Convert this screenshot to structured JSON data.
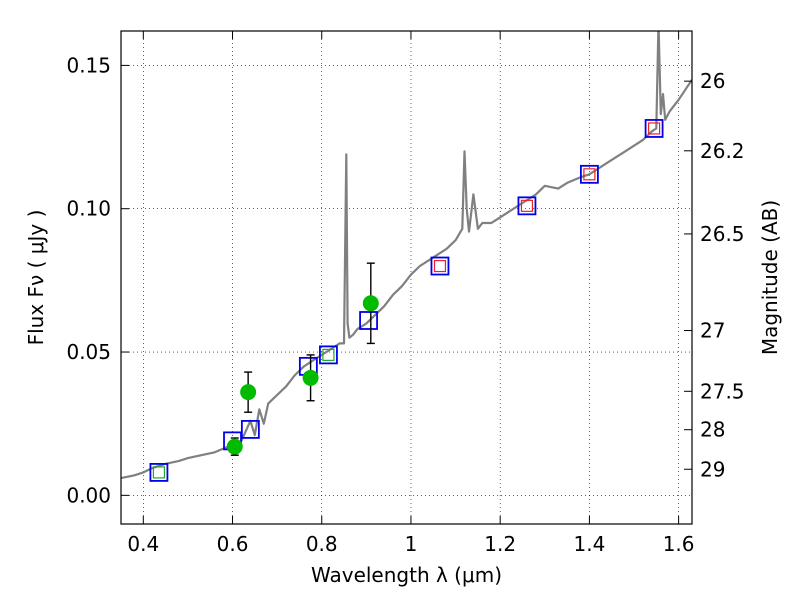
{
  "chart_data": {
    "type": "scatter",
    "xlabel": "Wavelength  λ (μm)",
    "ylabel": "Flux  Fν  ( μJy )",
    "y2label": "Magnitude (AB)",
    "xlim": [
      0.35,
      1.63
    ],
    "ylim": [
      -0.01,
      0.162
    ],
    "grid": true,
    "x_ticks": [
      {
        "value": 0.4,
        "label": "0.4"
      },
      {
        "value": 0.6,
        "label": "0.6"
      },
      {
        "value": 0.8,
        "label": "0.8"
      },
      {
        "value": 1.0,
        "label": "1"
      },
      {
        "value": 1.2,
        "label": "1.2"
      },
      {
        "value": 1.4,
        "label": "1.4"
      },
      {
        "value": 1.6,
        "label": "1.6"
      }
    ],
    "y_ticks": [
      {
        "value": 0.0,
        "label": "0.00"
      },
      {
        "value": 0.05,
        "label": "0.05"
      },
      {
        "value": 0.1,
        "label": "0.10"
      },
      {
        "value": 0.15,
        "label": "0.15"
      }
    ],
    "y2_ticks": [
      {
        "flux": 0.1445,
        "label": "26"
      },
      {
        "flux": 0.1202,
        "label": "26.2"
      },
      {
        "flux": 0.0912,
        "label": "26.5"
      },
      {
        "flux": 0.0575,
        "label": "27"
      },
      {
        "flux": 0.0363,
        "label": "27.5"
      },
      {
        "flux": 0.0229,
        "label": "28"
      },
      {
        "flux": 0.0091,
        "label": "29"
      }
    ],
    "series": [
      {
        "name": "model-spectrum",
        "kind": "line",
        "color": "#808080",
        "x": [
          0.35,
          0.38,
          0.4,
          0.42,
          0.45,
          0.48,
          0.5,
          0.53,
          0.56,
          0.59,
          0.6,
          0.62,
          0.64,
          0.65,
          0.66,
          0.67,
          0.68,
          0.7,
          0.72,
          0.74,
          0.76,
          0.78,
          0.8,
          0.82,
          0.84,
          0.85,
          0.855,
          0.858,
          0.862,
          0.87,
          0.88,
          0.9,
          0.92,
          0.94,
          0.96,
          0.98,
          1.0,
          1.02,
          1.05,
          1.08,
          1.1,
          1.115,
          1.12,
          1.125,
          1.13,
          1.14,
          1.15,
          1.16,
          1.18,
          1.2,
          1.22,
          1.25,
          1.28,
          1.3,
          1.33,
          1.35,
          1.38,
          1.4,
          1.42,
          1.44,
          1.46,
          1.48,
          1.5,
          1.52,
          1.54,
          1.55,
          1.555,
          1.56,
          1.565,
          1.57,
          1.58,
          1.6,
          1.63
        ],
        "y": [
          0.006,
          0.007,
          0.008,
          0.0095,
          0.011,
          0.012,
          0.013,
          0.014,
          0.015,
          0.017,
          0.016,
          0.019,
          0.026,
          0.021,
          0.03,
          0.025,
          0.032,
          0.035,
          0.038,
          0.042,
          0.045,
          0.047,
          0.049,
          0.051,
          0.053,
          0.053,
          0.119,
          0.06,
          0.055,
          0.056,
          0.058,
          0.06,
          0.063,
          0.066,
          0.07,
          0.073,
          0.077,
          0.08,
          0.083,
          0.086,
          0.089,
          0.093,
          0.12,
          0.1,
          0.092,
          0.105,
          0.093,
          0.095,
          0.095,
          0.097,
          0.099,
          0.102,
          0.105,
          0.108,
          0.107,
          0.109,
          0.111,
          0.112,
          0.114,
          0.116,
          0.118,
          0.12,
          0.122,
          0.124,
          0.127,
          0.128,
          0.165,
          0.133,
          0.14,
          0.131,
          0.134,
          0.138,
          0.145
        ]
      },
      {
        "name": "blue-squares",
        "kind": "square-marker",
        "color": "#0000ee",
        "x": [
          0.435,
          0.6,
          0.64,
          0.77,
          0.815,
          0.905,
          1.065,
          1.26,
          1.4,
          1.545
        ],
        "y": [
          0.008,
          0.019,
          0.023,
          0.045,
          0.049,
          0.061,
          0.08,
          0.101,
          0.112,
          0.128
        ]
      },
      {
        "name": "green-squares",
        "kind": "square-marker",
        "color": "#22aa22",
        "x": [
          0.435,
          0.815
        ],
        "y": [
          0.008,
          0.049
        ]
      },
      {
        "name": "red-squares",
        "kind": "square-marker",
        "color": "#ee2222",
        "x": [
          1.065,
          1.26,
          1.4,
          1.545
        ],
        "y": [
          0.08,
          0.101,
          0.112,
          0.128
        ]
      },
      {
        "name": "green-detections",
        "kind": "circle-errorbar",
        "color": "#00bb00",
        "x": [
          0.605,
          0.635,
          0.775,
          0.91
        ],
        "y": [
          0.017,
          0.036,
          0.041,
          0.067
        ],
        "yerr": [
          0.003,
          0.007,
          0.008,
          0.014
        ]
      }
    ]
  }
}
